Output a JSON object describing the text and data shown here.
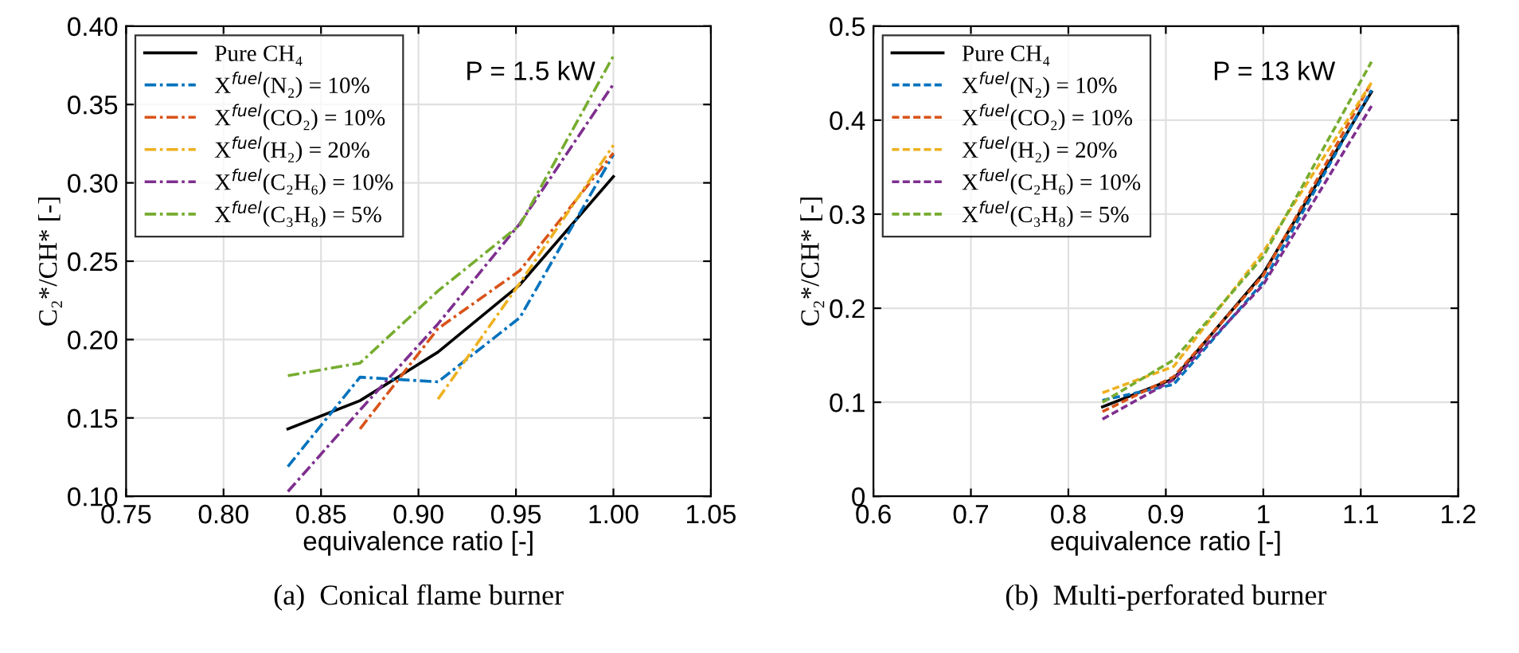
{
  "chart_data": [
    {
      "type": "line",
      "xlabel": "equivalence ratio [-]",
      "ylabel": "C₂*/CH* [-]",
      "xlim": [
        0.75,
        1.05
      ],
      "xticks": [
        {
          "value": 0.75,
          "label": "0.75"
        },
        {
          "value": 0.8,
          "label": "0.80"
        },
        {
          "value": 0.85,
          "label": "0.85"
        },
        {
          "value": 0.9,
          "label": "0.90"
        },
        {
          "value": 0.95,
          "label": "0.95"
        },
        {
          "value": 1.0,
          "label": "1.00"
        },
        {
          "value": 1.05,
          "label": "1.05"
        }
      ],
      "ylim": [
        0.1,
        0.4
      ],
      "yticks": [
        {
          "value": 0.1,
          "label": "0.10"
        },
        0.15,
        {
          "value": 0.2,
          "label": "0.20"
        },
        0.25,
        {
          "value": 0.3,
          "label": "0.30"
        },
        0.35,
        {
          "value": 0.4,
          "label": "0.40"
        }
      ],
      "grid": true,
      "legend": "top left",
      "line_style": "dashdot",
      "annotations": [
        "P = 1.5 kW",
        "(a)  Conical flame burner"
      ],
      "series": [
        {
          "name": "Pure CH₄",
          "color": "#000000",
          "line_style": "solid",
          "x": [
            0.833,
            0.87,
            0.91,
            0.952,
            1.0
          ],
          "values": [
            0.143,
            0.161,
            0.192,
            0.235,
            0.304
          ]
        },
        {
          "name": "X$^{fuel}$(N₂) = 10%",
          "color": "#0072bd",
          "x": [
            0.833,
            0.87,
            0.91,
            0.952,
            1.0
          ],
          "values": [
            0.119,
            0.176,
            0.173,
            0.214,
            0.318
          ]
        },
        {
          "name": "X$^{fuel}$(CO₂) = 10%",
          "color": "#d95319",
          "x": [
            0.87,
            0.91,
            0.952,
            1.0
          ],
          "values": [
            0.143,
            0.207,
            0.244,
            0.319
          ]
        },
        {
          "name": "X$^{fuel}$(H₂) = 20%",
          "color": "#edb120",
          "x": [
            0.91,
            0.952,
            1.0
          ],
          "values": [
            0.162,
            0.236,
            0.324
          ]
        },
        {
          "name": "X$^{fuel}$(C₂H₆) = 10%",
          "color": "#7e2f8e",
          "x": [
            0.833,
            0.87,
            0.91,
            0.952,
            1.0
          ],
          "values": [
            0.103,
            0.155,
            0.21,
            0.274,
            0.363
          ]
        },
        {
          "name": "X$^{fuel}$(C₃H₈) = 5%",
          "color": "#77ac30",
          "x": [
            0.833,
            0.87,
            0.91,
            0.952,
            1.0
          ],
          "values": [
            0.177,
            0.185,
            0.231,
            0.273,
            0.381
          ]
        }
      ]
    },
    {
      "type": "line",
      "xlabel": "equivalence ratio [-]",
      "ylabel": "C₂*/CH* [-]",
      "xlim": [
        0.6,
        1.2
      ],
      "xticks": [
        0.6,
        0.7,
        0.8,
        0.9,
        1,
        1.1,
        1.2
      ],
      "ylim": [
        0,
        0.5
      ],
      "yticks": [
        0,
        0.1,
        0.2,
        0.3,
        0.4,
        0.5
      ],
      "grid": true,
      "legend": "top left",
      "line_style": "dashed",
      "annotations": [
        "P = 13 kW",
        "(b)  Multi-perforated burner"
      ],
      "series": [
        {
          "name": "Pure CH₄",
          "color": "#000000",
          "line_style": "solid",
          "x": [
            0.835,
            0.908,
            1.0,
            1.111
          ],
          "values": [
            0.095,
            0.125,
            0.237,
            0.43
          ]
        },
        {
          "name": "X$^{fuel}$(N₂) = 10%",
          "color": "#0072bd",
          "x": [
            0.835,
            0.908,
            1.0,
            1.111
          ],
          "values": [
            0.102,
            0.119,
            0.228,
            0.432
          ]
        },
        {
          "name": "X$^{fuel}$(CO₂) = 10%",
          "color": "#d95319",
          "x": [
            0.835,
            0.908,
            1.0,
            1.111
          ],
          "values": [
            0.09,
            0.127,
            0.235,
            0.44
          ]
        },
        {
          "name": "X$^{fuel}$(H₂) = 20%",
          "color": "#edb120",
          "x": [
            0.835,
            0.908,
            1.0,
            1.111
          ],
          "values": [
            0.11,
            0.138,
            0.26,
            0.44
          ]
        },
        {
          "name": "X$^{fuel}$(C₂H₆) = 10%",
          "color": "#7e2f8e",
          "x": [
            0.835,
            0.908,
            1.0,
            1.111
          ],
          "values": [
            0.082,
            0.124,
            0.225,
            0.415
          ]
        },
        {
          "name": "X$^{fuel}$(C₃H₈) = 5%",
          "color": "#77ac30",
          "x": [
            0.835,
            0.908,
            1.0,
            1.111
          ],
          "values": [
            0.1,
            0.145,
            0.255,
            0.462
          ]
        }
      ]
    }
  ]
}
